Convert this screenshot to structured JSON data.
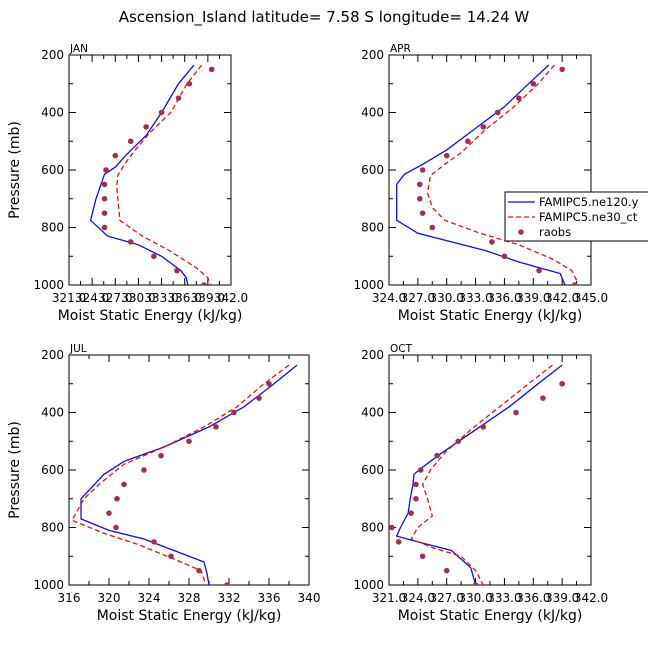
{
  "figure_title": "Ascension_Island latitude= 7.58 S longitude= 14.24 W",
  "legend": {
    "entries": [
      "FAMIPC5.ne120.y",
      "FAMIPC5.ne30_ct",
      "raobs"
    ]
  },
  "colors": {
    "ne120": "#1010d0",
    "ne30": "#e01010",
    "raobs": "#a03050"
  },
  "chart_data": [
    {
      "type": "line",
      "panel_label": "JAN",
      "xlabel": "Moist Static Energy (kJ/kg)",
      "ylabel": "Pressure (mb)",
      "xlim": [
        321.0,
        342.0
      ],
      "ylim": [
        1000,
        200
      ],
      "x_tick_labels": [
        "321.0",
        "324.0",
        "327.0",
        "330.0",
        "333.0",
        "336.0",
        "339.0",
        "342.0"
      ],
      "y_ticks": [
        200,
        400,
        600,
        800,
        1000
      ],
      "series": [
        {
          "name": "FAMIPC5.ne120.y",
          "style": "solid",
          "points": [
            [
              337.2,
              235
            ],
            [
              335.2,
              300
            ],
            [
              333.0,
              400
            ],
            [
              331.0,
              480
            ],
            [
              328.5,
              545
            ],
            [
              327.0,
              590
            ],
            [
              325.6,
              615
            ],
            [
              324.5,
              700
            ],
            [
              323.8,
              775
            ],
            [
              326.0,
              830
            ],
            [
              330.0,
              860
            ],
            [
              333.0,
              900
            ],
            [
              335.5,
              950
            ],
            [
              336.2,
              975
            ],
            [
              336.4,
              1000
            ]
          ]
        },
        {
          "name": "FAMIPC5.ne30_ct",
          "style": "dashed",
          "points": [
            [
              338.2,
              235
            ],
            [
              336.3,
              300
            ],
            [
              334.2,
              400
            ],
            [
              331.5,
              470
            ],
            [
              329.6,
              530
            ],
            [
              328.2,
              580
            ],
            [
              327.3,
              620
            ],
            [
              327.2,
              660
            ],
            [
              327.4,
              720
            ],
            [
              327.6,
              775
            ],
            [
              330.5,
              830
            ],
            [
              334.0,
              880
            ],
            [
              337.5,
              940
            ],
            [
              339.0,
              975
            ],
            [
              339.3,
              1000
            ]
          ]
        },
        {
          "name": "raobs",
          "style": "markers",
          "points": [
            [
              339.5,
              250
            ],
            [
              336.6,
              300
            ],
            [
              335.2,
              350
            ],
            [
              333.0,
              400
            ],
            [
              331.0,
              450
            ],
            [
              329.0,
              500
            ],
            [
              327.0,
              550
            ],
            [
              325.8,
              600
            ],
            [
              325.6,
              650
            ],
            [
              325.6,
              700
            ],
            [
              325.6,
              750
            ],
            [
              325.6,
              800
            ],
            [
              329.0,
              850
            ],
            [
              332.0,
              900
            ],
            [
              335.0,
              950
            ],
            [
              338.5,
              1000
            ]
          ]
        }
      ]
    },
    {
      "type": "line",
      "panel_label": "APR",
      "xlabel": "Moist Static Energy (kJ/kg)",
      "ylabel": "",
      "xlim": [
        324.0,
        345.0
      ],
      "ylim": [
        1000,
        200
      ],
      "x_tick_labels": [
        "324.0",
        "327.0",
        "330.0",
        "333.0",
        "336.0",
        "339.0",
        "342.0",
        "345.0"
      ],
      "y_ticks": [
        200,
        400,
        600,
        800,
        1000
      ],
      "series": [
        {
          "name": "FAMIPC5.ne120.y",
          "style": "solid",
          "points": [
            [
              340.6,
              235
            ],
            [
              338.5,
              300
            ],
            [
              336.0,
              380
            ],
            [
              333.2,
              450
            ],
            [
              330.0,
              530
            ],
            [
              327.5,
              580
            ],
            [
              325.6,
              615
            ],
            [
              324.8,
              650
            ],
            [
              324.8,
              730
            ],
            [
              324.8,
              775
            ],
            [
              327.0,
              820
            ],
            [
              330.5,
              850
            ],
            [
              334.0,
              880
            ],
            [
              337.5,
              920
            ],
            [
              341.8,
              960
            ],
            [
              342.3,
              1000
            ]
          ]
        },
        {
          "name": "FAMIPC5.ne30_ct",
          "style": "dashed",
          "points": [
            [
              341.2,
              235
            ],
            [
              339.5,
              300
            ],
            [
              337.0,
              380
            ],
            [
              334.0,
              460
            ],
            [
              331.5,
              540
            ],
            [
              329.8,
              580
            ],
            [
              328.3,
              620
            ],
            [
              328.0,
              680
            ],
            [
              328.5,
              730
            ],
            [
              329.8,
              775
            ],
            [
              333.5,
              820
            ],
            [
              337.5,
              860
            ],
            [
              341.0,
              910
            ],
            [
              343.0,
              950
            ],
            [
              343.6,
              990
            ]
          ]
        },
        {
          "name": "raobs",
          "style": "markers",
          "points": [
            [
              342.0,
              250
            ],
            [
              339.0,
              300
            ],
            [
              337.5,
              350
            ],
            [
              335.3,
              400
            ],
            [
              333.8,
              450
            ],
            [
              332.2,
              500
            ],
            [
              330.0,
              550
            ],
            [
              327.5,
              600
            ],
            [
              327.2,
              650
            ],
            [
              327.2,
              700
            ],
            [
              327.5,
              750
            ],
            [
              328.5,
              800
            ],
            [
              334.7,
              850
            ],
            [
              336.0,
              900
            ],
            [
              339.6,
              950
            ],
            [
              343.3,
              1000
            ]
          ]
        }
      ]
    },
    {
      "type": "line",
      "panel_label": "JUL",
      "xlabel": "Moist Static Energy (kJ/kg)",
      "ylabel": "Pressure (mb)",
      "xlim": [
        316,
        340
      ],
      "ylim": [
        1000,
        200
      ],
      "x_tick_labels": [
        "316",
        "320",
        "324",
        "328",
        "332",
        "336",
        "340"
      ],
      "y_ticks": [
        200,
        400,
        600,
        800,
        1000
      ],
      "series": [
        {
          "name": "FAMIPC5.ne120.y",
          "style": "solid",
          "points": [
            [
              338.8,
              235
            ],
            [
              336.5,
              300
            ],
            [
              333.5,
              380
            ],
            [
              330.0,
              450
            ],
            [
              325.5,
              520
            ],
            [
              321.5,
              570
            ],
            [
              319.5,
              615
            ],
            [
              317.2,
              700
            ],
            [
              317.2,
              770
            ],
            [
              320.0,
              810
            ],
            [
              323.5,
              840
            ],
            [
              326.5,
              880
            ],
            [
              329.5,
              920
            ],
            [
              329.8,
              960
            ],
            [
              330.0,
              1000
            ]
          ]
        },
        {
          "name": "FAMIPC5.ne30_ct",
          "style": "dashed",
          "points": [
            [
              338.0,
              235
            ],
            [
              335.5,
              300
            ],
            [
              332.8,
              380
            ],
            [
              329.5,
              450
            ],
            [
              325.5,
              520
            ],
            [
              321.5,
              580
            ],
            [
              319.0,
              650
            ],
            [
              317.5,
              700
            ],
            [
              316.3,
              775
            ],
            [
              319.5,
              820
            ],
            [
              323.0,
              860
            ],
            [
              326.5,
              910
            ],
            [
              329.2,
              950
            ],
            [
              329.6,
              990
            ]
          ]
        },
        {
          "name": "raobs",
          "style": "markers",
          "points": [
            [
              336.0,
              300
            ],
            [
              335.0,
              350
            ],
            [
              332.5,
              400
            ],
            [
              330.7,
              450
            ],
            [
              328.0,
              500
            ],
            [
              325.2,
              550
            ],
            [
              323.5,
              600
            ],
            [
              321.5,
              650
            ],
            [
              320.8,
              700
            ],
            [
              320.0,
              750
            ],
            [
              320.7,
              800
            ],
            [
              324.5,
              850
            ],
            [
              326.2,
              900
            ],
            [
              329.0,
              950
            ],
            [
              331.8,
              1000
            ]
          ]
        }
      ]
    },
    {
      "type": "line",
      "panel_label": "OCT",
      "xlabel": "Moist Static Energy (kJ/kg)",
      "ylabel": "",
      "xlim": [
        321.0,
        342.0
      ],
      "ylim": [
        1000,
        200
      ],
      "x_tick_labels": [
        "321.0",
        "324.0",
        "327.0",
        "330.0",
        "333.0",
        "336.0",
        "339.0",
        "342.0"
      ],
      "y_ticks": [
        200,
        400,
        600,
        800,
        1000
      ],
      "series": [
        {
          "name": "FAMIPC5.ne120.y",
          "style": "solid",
          "points": [
            [
              339.0,
              235
            ],
            [
              336.5,
              300
            ],
            [
              333.5,
              380
            ],
            [
              330.0,
              460
            ],
            [
              326.5,
              540
            ],
            [
              324.5,
              590
            ],
            [
              323.6,
              615
            ],
            [
              323.5,
              650
            ],
            [
              323.2,
              700
            ],
            [
              323.0,
              750
            ],
            [
              322.2,
              800
            ],
            [
              321.8,
              830
            ],
            [
              324.0,
              850
            ],
            [
              327.5,
              880
            ],
            [
              329.5,
              940
            ],
            [
              330.0,
              1000
            ]
          ]
        },
        {
          "name": "FAMIPC5.ne30_ct",
          "style": "dashed",
          "points": [
            [
              338.0,
              235
            ],
            [
              335.5,
              300
            ],
            [
              332.5,
              380
            ],
            [
              329.5,
              460
            ],
            [
              326.8,
              540
            ],
            [
              325.3,
              600
            ],
            [
              324.5,
              650
            ],
            [
              325.0,
              700
            ],
            [
              325.5,
              760
            ],
            [
              324.0,
              800
            ],
            [
              323.3,
              840
            ],
            [
              325.5,
              870
            ],
            [
              328.5,
              900
            ],
            [
              330.0,
              950
            ],
            [
              330.8,
              1000
            ]
          ]
        },
        {
          "name": "raobs",
          "style": "markers",
          "points": [
            [
              339.0,
              300
            ],
            [
              337.0,
              350
            ],
            [
              334.2,
              400
            ],
            [
              330.8,
              450
            ],
            [
              328.2,
              500
            ],
            [
              326.0,
              550
            ],
            [
              324.3,
              600
            ],
            [
              323.8,
              650
            ],
            [
              323.8,
              700
            ],
            [
              323.3,
              750
            ],
            [
              321.3,
              800
            ],
            [
              322.0,
              850
            ],
            [
              324.5,
              900
            ],
            [
              327.0,
              950
            ],
            [
              330.0,
              1000
            ]
          ]
        }
      ]
    }
  ]
}
